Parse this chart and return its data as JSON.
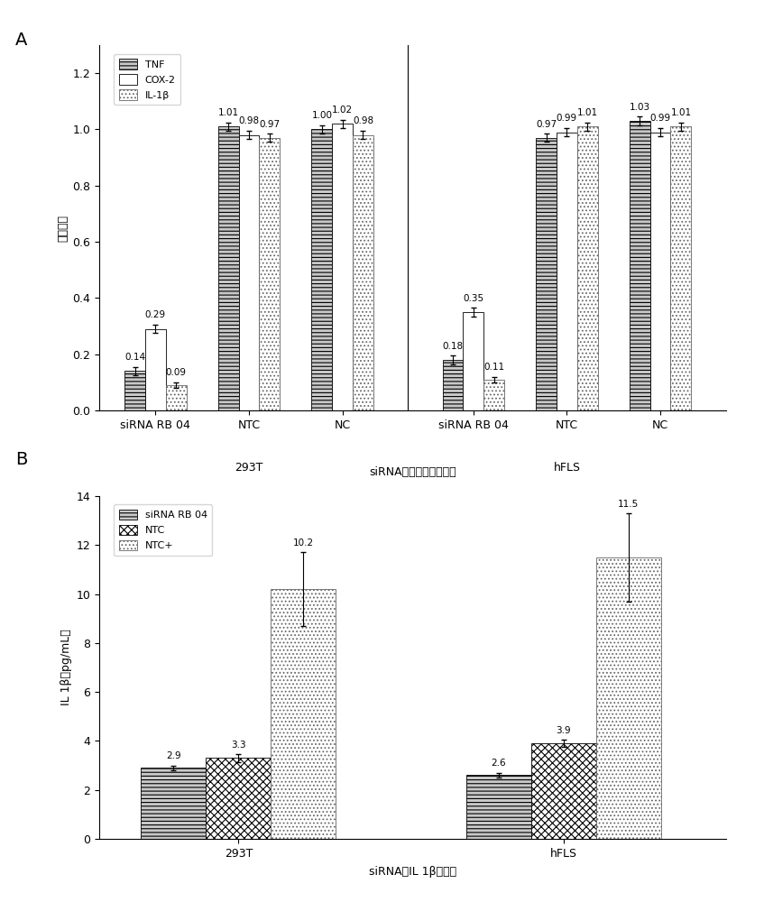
{
  "panel_A": {
    "title": "siRNA降低炎症因子表达",
    "ylabel": "表达水平",
    "groups": [
      "siRNA RB 04",
      "NTC",
      "NC",
      "siRNA RB 04",
      "NTC",
      "NC"
    ],
    "cell_line_labels": [
      "293T",
      "hFLS"
    ],
    "TNF_values": [
      0.14,
      1.01,
      1.0,
      0.18,
      0.97,
      1.03
    ],
    "COX2_values": [
      0.29,
      0.98,
      1.02,
      0.35,
      0.99,
      0.99
    ],
    "IL1B_values": [
      0.09,
      0.97,
      0.98,
      0.11,
      1.01,
      1.01
    ],
    "TNF_errors": [
      0.015,
      0.015,
      0.015,
      0.015,
      0.015,
      0.015
    ],
    "COX2_errors": [
      0.015,
      0.015,
      0.015,
      0.015,
      0.015,
      0.015
    ],
    "IL1B_errors": [
      0.01,
      0.015,
      0.015,
      0.01,
      0.015,
      0.015
    ],
    "ylim": [
      0,
      1.3
    ],
    "yticks": [
      0.0,
      0.2,
      0.4,
      0.6,
      0.8,
      1.0,
      1.2
    ],
    "legend_labels": [
      "TNF",
      "COX-2",
      "IL-1β"
    ],
    "bar_width": 0.22
  },
  "panel_B": {
    "title": "siRNA对IL 1β的影响",
    "ylabel": "IL 1β（pg/mL）",
    "groups": [
      "293T",
      "hFLS"
    ],
    "siRNA_values": [
      2.9,
      2.6
    ],
    "NTC_values": [
      3.3,
      3.9
    ],
    "NTCp_values": [
      10.2,
      11.5
    ],
    "siRNA_errors": [
      0.1,
      0.1
    ],
    "NTC_errors": [
      0.15,
      0.15
    ],
    "NTCp_errors": [
      1.5,
      1.8
    ],
    "ylim": [
      0,
      14
    ],
    "yticks": [
      0,
      2,
      4,
      6,
      8,
      10,
      12,
      14
    ],
    "legend_labels": [
      "siRNA RB 04",
      "NTC",
      "NTC+"
    ],
    "bar_width": 0.28
  },
  "bg_color": "#ffffff",
  "font_size": 9,
  "label_font_size": 9,
  "tick_font_size": 9,
  "annot_fontsize": 7.5
}
